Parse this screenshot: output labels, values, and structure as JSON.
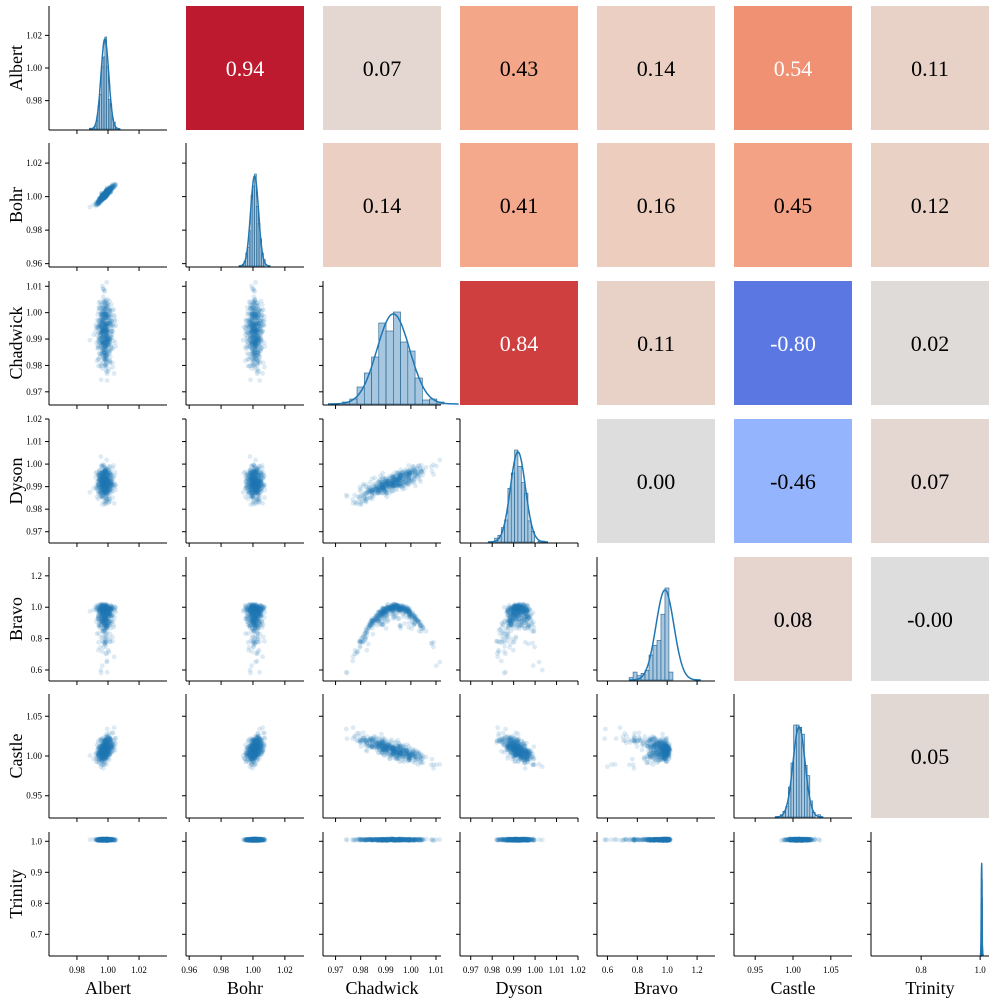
{
  "chart_data": {
    "type": "pairplot",
    "variables": [
      "Albert",
      "Bohr",
      "Chadwick",
      "Dyson",
      "Bravo",
      "Castle",
      "Trinity"
    ],
    "upper_triangle": {
      "type": "heatmap",
      "metric": "correlation",
      "colormap": "coolwarm",
      "range": [
        -1,
        1
      ],
      "cells": [
        {
          "row": "Albert",
          "col": "Bohr",
          "value": 0.94,
          "label": "0.94"
        },
        {
          "row": "Albert",
          "col": "Chadwick",
          "value": 0.07,
          "label": "0.07"
        },
        {
          "row": "Albert",
          "col": "Dyson",
          "value": 0.43,
          "label": "0.43"
        },
        {
          "row": "Albert",
          "col": "Bravo",
          "value": 0.14,
          "label": "0.14"
        },
        {
          "row": "Albert",
          "col": "Castle",
          "value": 0.54,
          "label": "0.54"
        },
        {
          "row": "Albert",
          "col": "Trinity",
          "value": 0.11,
          "label": "0.11"
        },
        {
          "row": "Bohr",
          "col": "Chadwick",
          "value": 0.14,
          "label": "0.14"
        },
        {
          "row": "Bohr",
          "col": "Dyson",
          "value": 0.41,
          "label": "0.41"
        },
        {
          "row": "Bohr",
          "col": "Bravo",
          "value": 0.16,
          "label": "0.16"
        },
        {
          "row": "Bohr",
          "col": "Castle",
          "value": 0.45,
          "label": "0.45"
        },
        {
          "row": "Bohr",
          "col": "Trinity",
          "value": 0.12,
          "label": "0.12"
        },
        {
          "row": "Chadwick",
          "col": "Dyson",
          "value": 0.84,
          "label": "0.84"
        },
        {
          "row": "Chadwick",
          "col": "Bravo",
          "value": 0.11,
          "label": "0.11"
        },
        {
          "row": "Chadwick",
          "col": "Castle",
          "value": -0.8,
          "label": "-0.80"
        },
        {
          "row": "Chadwick",
          "col": "Trinity",
          "value": 0.02,
          "label": "0.02"
        },
        {
          "row": "Dyson",
          "col": "Bravo",
          "value": 0.0,
          "label": "0.00"
        },
        {
          "row": "Dyson",
          "col": "Castle",
          "value": -0.46,
          "label": "-0.46"
        },
        {
          "row": "Dyson",
          "col": "Trinity",
          "value": 0.07,
          "label": "0.07"
        },
        {
          "row": "Bravo",
          "col": "Castle",
          "value": 0.08,
          "label": "0.08"
        },
        {
          "row": "Bravo",
          "col": "Trinity",
          "value": -0.0,
          "label": "-0.00"
        },
        {
          "row": "Castle",
          "col": "Trinity",
          "value": 0.05,
          "label": "0.05"
        }
      ]
    },
    "lower_triangle": {
      "type": "scatter",
      "color": "#1f77b4",
      "alpha": 0.15
    },
    "diagonal": {
      "type": "histogram+kde",
      "color": "#1f77b4"
    },
    "axes": {
      "Albert": {
        "range": [
          0.962,
          1.038
        ],
        "ticks": [
          0.98,
          1.0,
          1.02
        ],
        "tick_labels": [
          "0.98",
          "1.00",
          "1.02"
        ]
      },
      "Bohr": {
        "range": [
          0.958,
          1.032
        ],
        "ticks": [
          0.96,
          0.98,
          1.0,
          1.02
        ],
        "tick_labels": [
          "0.96",
          "0.98",
          "1.00",
          "1.02"
        ]
      },
      "Chadwick": {
        "range": [
          0.965,
          1.012
        ],
        "ticks": [
          0.97,
          0.98,
          0.99,
          1.0,
          1.01
        ],
        "tick_labels": [
          "0.97",
          "0.98",
          "0.99",
          "1.00",
          "1.01"
        ]
      },
      "Dyson": {
        "range": [
          0.965,
          1.02
        ],
        "ticks": [
          0.97,
          0.98,
          0.99,
          1.0,
          1.01,
          1.02
        ],
        "tick_labels": [
          "0.97",
          "0.98",
          "0.99",
          "1.00",
          "1.01",
          "1.02"
        ]
      },
      "Bravo": {
        "range": [
          0.53,
          1.32
        ],
        "ticks": [
          0.6,
          0.8,
          1.0,
          1.2
        ],
        "tick_labels": [
          "0.6",
          "0.8",
          "1.0",
          "1.2"
        ]
      },
      "Castle": {
        "range": [
          0.922,
          1.078
        ],
        "ticks": [
          0.95,
          1.0,
          1.05
        ],
        "tick_labels": [
          "0.95",
          "1.00",
          "1.05"
        ]
      },
      "Trinity": {
        "range": [
          0.63,
          1.03
        ],
        "ticks": [
          0.7,
          0.8,
          0.9,
          1.0
        ],
        "tick_labels": [
          "0.7",
          "0.8",
          "0.9",
          "1.0"
        ]
      }
    },
    "x_tick_overrides": {
      "Trinity": {
        "ticks": [
          0.8,
          1.0
        ],
        "tick_labels": [
          "0.8",
          "1.0"
        ]
      }
    },
    "distributions": {
      "Albert": {
        "mean": 0.998,
        "sd": 0.0025
      },
      "Bohr": {
        "mean": 1.001,
        "sd": 0.0025
      },
      "Chadwick": {
        "mean": 0.993,
        "sd": 0.0065
      },
      "Dyson": {
        "mean": 0.992,
        "sd": 0.0035
      },
      "Bravo": {
        "mean": 0.985,
        "sd": 0.06
      },
      "Castle": {
        "mean": 1.008,
        "sd": 0.008
      },
      "Trinity": {
        "mean": 1.005,
        "sd": 0.0012
      }
    }
  }
}
